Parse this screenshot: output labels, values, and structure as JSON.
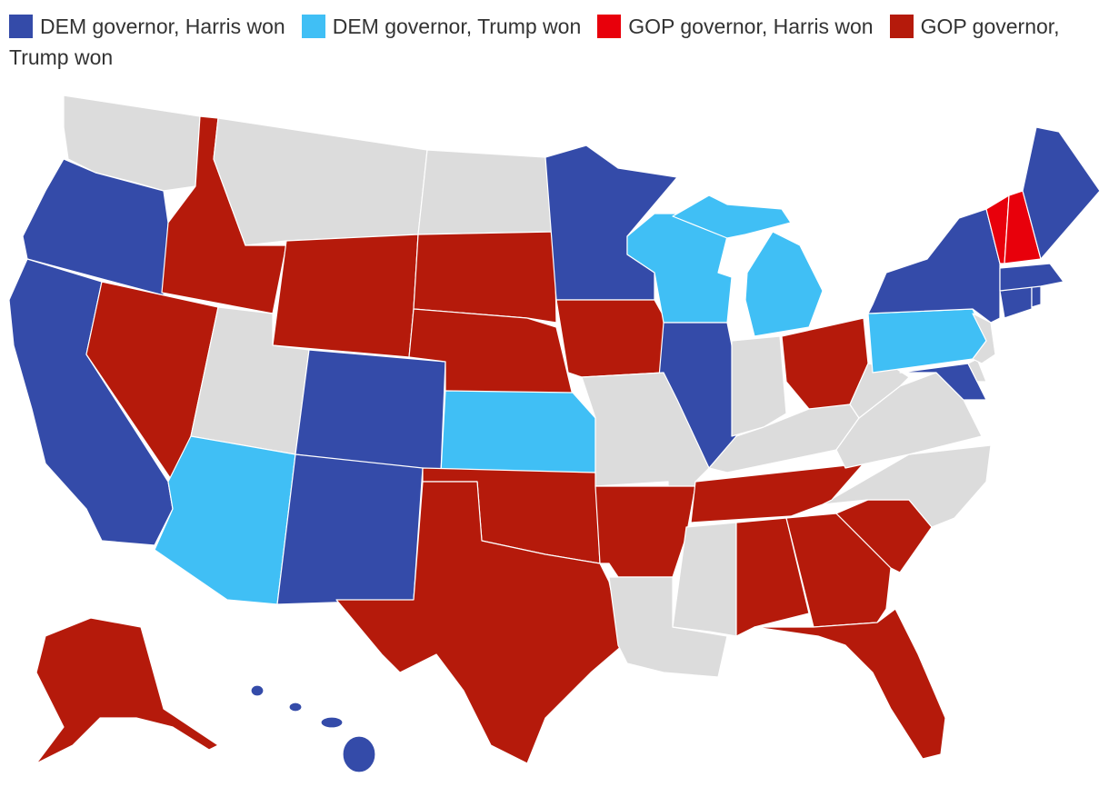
{
  "legend": [
    {
      "name": "DEM governor, Harris won",
      "color": "#344ba9"
    },
    {
      "name": "DEM governor, Trump won",
      "color": "#40bff5"
    },
    {
      "name": "GOP governor, Harris won",
      "color": "#e8000b"
    },
    {
      "name": "GOP governor, Trump won",
      "color": "#b51a0b"
    }
  ]
}
